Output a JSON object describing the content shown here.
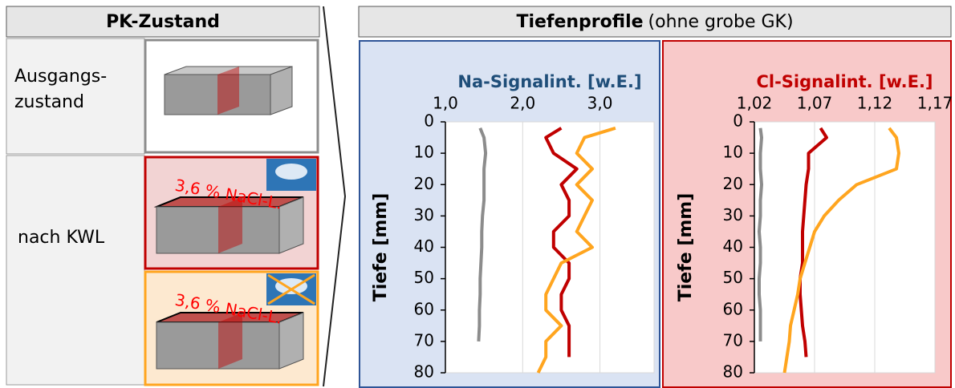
{
  "panel": {
    "header": "PK-Zustand",
    "rows": [
      {
        "label": [
          "Ausgangs-",
          "zustand"
        ]
      },
      {
        "label": [
          "nach KWL"
        ],
        "annotations": [
          "3,6 % NaCl-L.",
          "3,6 % NaCl-L."
        ]
      }
    ]
  },
  "header": {
    "title": "Tiefenprofile",
    "subtitle": "(ohne grobe GK)"
  },
  "chart_data": [
    {
      "type": "line",
      "title": "Na-Signalint. [w.E.]",
      "y_label": "Tiefe [mm]",
      "x": [
        2,
        5,
        10,
        15,
        20,
        25,
        30,
        35,
        40,
        45,
        50,
        55,
        60,
        65,
        70,
        75,
        80
      ],
      "series": [
        {
          "color": "#8c8c8c",
          "values": [
            1.45,
            1.5,
            1.52,
            1.5,
            1.5,
            1.5,
            1.48,
            1.47,
            1.47,
            1.46,
            1.45,
            1.45,
            1.44,
            1.44,
            1.43,
            null,
            null
          ]
        },
        {
          "color": "#c00000",
          "values": [
            2.5,
            2.3,
            2.4,
            2.7,
            2.5,
            2.6,
            2.6,
            2.4,
            2.4,
            2.6,
            2.6,
            2.5,
            2.5,
            2.6,
            2.6,
            2.6,
            null
          ]
        },
        {
          "color": "#ffa51f",
          "values": [
            3.2,
            2.8,
            2.7,
            2.9,
            2.7,
            2.9,
            2.8,
            2.7,
            2.9,
            2.5,
            2.4,
            2.3,
            2.3,
            2.5,
            2.3,
            2.3,
            2.2
          ]
        }
      ],
      "xlim": [
        1.0,
        3.7
      ],
      "xticks": [
        {
          "value": 1.0,
          "label": "1,0"
        },
        {
          "value": 2.0,
          "label": "2,0"
        },
        {
          "value": 3.0,
          "label": "3,0"
        }
      ],
      "ylim": [
        0,
        80
      ],
      "yticks": [
        0,
        10,
        20,
        30,
        40,
        50,
        60,
        70,
        80
      ],
      "y_inverted": true,
      "grid": true
    },
    {
      "type": "line",
      "title": "Cl-Signalint. [w.E.]",
      "y_label": "Tiefe [mm]",
      "x": [
        2,
        5,
        10,
        15,
        20,
        25,
        30,
        35,
        40,
        45,
        50,
        55,
        60,
        65,
        70,
        75,
        80
      ],
      "series": [
        {
          "color": "#8c8c8c",
          "values": [
            1.025,
            1.026,
            1.025,
            1.025,
            1.026,
            1.025,
            1.025,
            1.024,
            1.025,
            1.025,
            1.024,
            1.024,
            1.025,
            1.025,
            1.025,
            null,
            null
          ]
        },
        {
          "color": "#c00000",
          "values": [
            1.075,
            1.08,
            1.065,
            1.065,
            1.063,
            1.062,
            1.061,
            1.06,
            1.06,
            1.06,
            1.058,
            1.058,
            1.059,
            1.06,
            1.062,
            1.063,
            null
          ]
        },
        {
          "color": "#ffa51f",
          "values": [
            1.132,
            1.138,
            1.14,
            1.138,
            1.105,
            1.09,
            1.078,
            1.07,
            1.066,
            1.062,
            1.058,
            1.056,
            1.053,
            1.05,
            1.049,
            1.047,
            1.045
          ]
        }
      ],
      "xlim": [
        1.02,
        1.17
      ],
      "xticks": [
        {
          "value": 1.02,
          "label": "1,02"
        },
        {
          "value": 1.07,
          "label": "1,07"
        },
        {
          "value": 1.12,
          "label": "1,12"
        },
        {
          "value": 1.17,
          "label": "1,17"
        }
      ],
      "ylim": [
        0,
        80
      ],
      "yticks": [
        0,
        10,
        20,
        30,
        40,
        50,
        60,
        70,
        80
      ],
      "y_inverted": true,
      "grid": true
    }
  ]
}
